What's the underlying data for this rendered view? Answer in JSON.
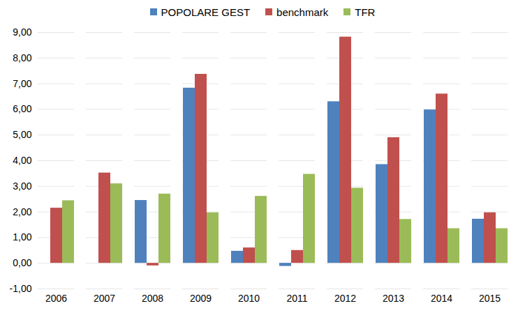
{
  "chart_data": {
    "type": "bar",
    "categories": [
      "2006",
      "2007",
      "2008",
      "2009",
      "2010",
      "2011",
      "2012",
      "2013",
      "2014",
      "2015"
    ],
    "series": [
      {
        "name": "POPOLARE GEST",
        "color": "#4f81bd",
        "values": [
          null,
          null,
          2.45,
          6.83,
          0.47,
          -0.12,
          6.3,
          3.85,
          5.98,
          1.72
        ]
      },
      {
        "name": "benchmark",
        "color": "#c0504d",
        "values": [
          2.15,
          3.52,
          -0.1,
          7.37,
          0.6,
          0.5,
          8.82,
          4.9,
          6.6,
          1.97
        ]
      },
      {
        "name": "TFR",
        "color": "#9bbb59",
        "values": [
          2.44,
          3.1,
          2.7,
          1.97,
          2.61,
          3.47,
          2.93,
          1.71,
          1.35,
          1.35
        ]
      }
    ],
    "ylim": [
      -1,
      9
    ],
    "yticks": [
      {
        "value": -1,
        "label": "-1,00"
      },
      {
        "value": 0,
        "label": "0,00"
      },
      {
        "value": 1,
        "label": "1,00"
      },
      {
        "value": 2,
        "label": "2,00"
      },
      {
        "value": 3,
        "label": "3,00"
      },
      {
        "value": 4,
        "label": "4,00"
      },
      {
        "value": 5,
        "label": "5,00"
      },
      {
        "value": 6,
        "label": "6,00"
      },
      {
        "value": 7,
        "label": "7,00"
      },
      {
        "value": 8,
        "label": "8,00"
      },
      {
        "value": 9,
        "label": "9,00"
      }
    ],
    "grid": true,
    "legend": "top"
  }
}
